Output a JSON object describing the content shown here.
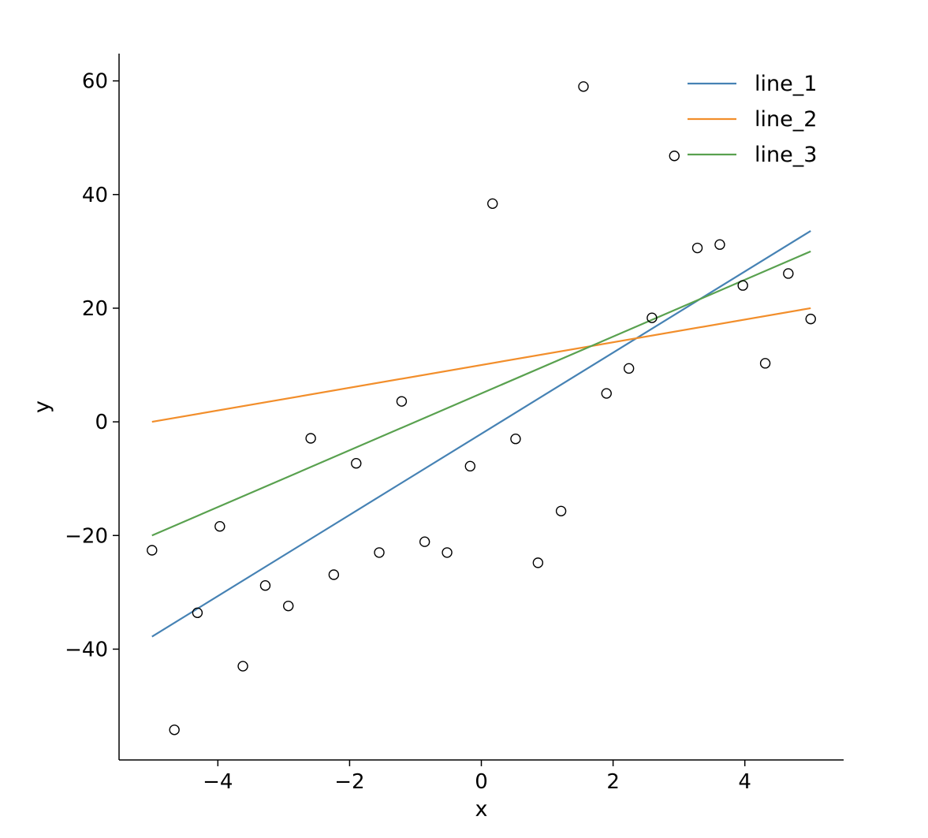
{
  "chart_data": {
    "type": "line",
    "xlabel": "x",
    "ylabel": "y",
    "xlim": [
      -5.5,
      5.5
    ],
    "ylim": [
      -59.5,
      64.8
    ],
    "x_ticks": [
      -4,
      -2,
      0,
      2,
      4
    ],
    "x_tick_labels": [
      "−4",
      "−2",
      "0",
      "2",
      "4"
    ],
    "y_ticks": [
      -40,
      -20,
      0,
      20,
      40,
      60
    ],
    "y_tick_labels": [
      "−40",
      "−20",
      "0",
      "20",
      "40",
      "60"
    ],
    "grid": false,
    "legend_position": "top-right",
    "series": [
      {
        "name": "line_1",
        "color": "#4682b4",
        "x": [
          -5,
          5
        ],
        "y": [
          -37.8,
          33.6
        ]
      },
      {
        "name": "line_2",
        "color": "#f28e2b",
        "x": [
          -5,
          5
        ],
        "y": [
          0,
          20
        ]
      },
      {
        "name": "line_3",
        "color": "#59a14f",
        "x": [
          -5,
          5
        ],
        "y": [
          -20,
          30
        ]
      }
    ],
    "scatter": {
      "marker": "open-circle",
      "color": "#000000",
      "x": [
        -5.0,
        -4.66,
        -4.31,
        -3.97,
        -3.62,
        -3.28,
        -2.93,
        -2.59,
        -2.24,
        -1.9,
        -1.55,
        -1.21,
        -0.86,
        -0.52,
        -0.17,
        0.17,
        0.52,
        0.86,
        1.21,
        1.55,
        1.9,
        2.24,
        2.59,
        2.93,
        3.28,
        3.62,
        3.97,
        4.31,
        4.66,
        5.0
      ],
      "y": [
        -22.6,
        -54.2,
        -33.6,
        -18.4,
        -43.0,
        -28.8,
        -32.4,
        -2.9,
        -26.9,
        -7.3,
        -23.0,
        3.6,
        -21.1,
        -23.0,
        -7.8,
        38.4,
        -3.0,
        -24.8,
        -15.7,
        59.0,
        5.0,
        9.4,
        18.3,
        46.8,
        30.6,
        31.2,
        24.0,
        10.3,
        26.1,
        18.1
      ]
    }
  }
}
